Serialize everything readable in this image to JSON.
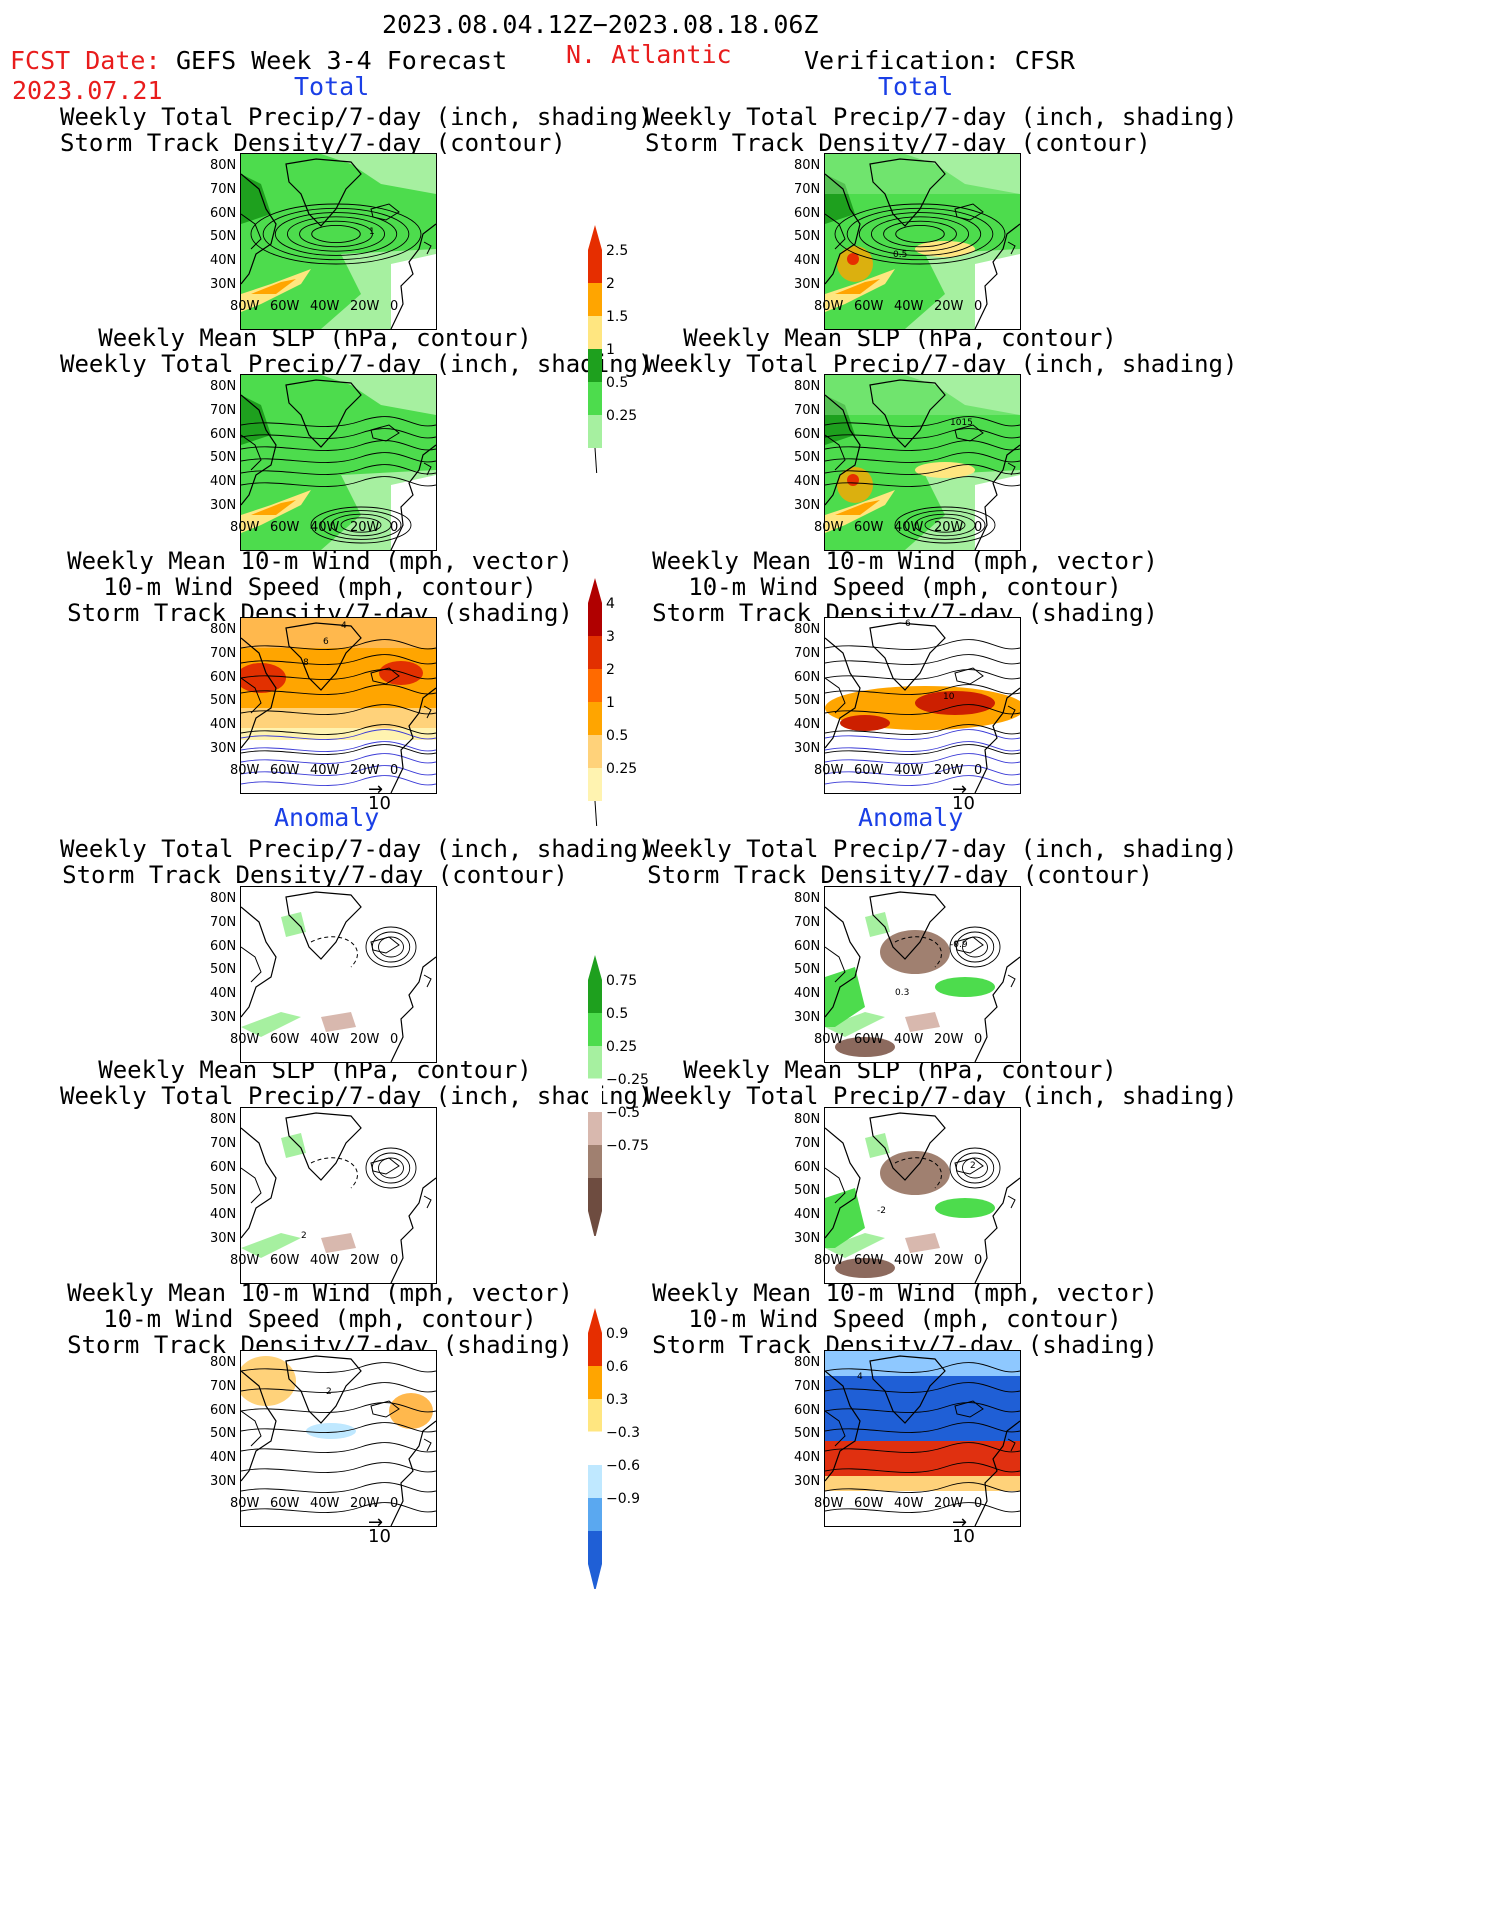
{
  "header": {
    "dates": "2023.08.04.12Z−2023.08.18.06Z",
    "fcst_label": "FCST Date:",
    "fcst_date": "2023.07.21",
    "forecast_title": "GEFS Week 3-4 Forecast",
    "region": "N. Atlantic",
    "verification": "Verification: CFSR"
  },
  "sections": {
    "total": "Total",
    "anomaly": "Anomaly"
  },
  "panel_titles": {
    "precip_storm": "Weekly Total Precip/7-day (inch, shading)\nStorm Track Density/7-day (contour)",
    "slp_precip": "Weekly Mean SLP (hPa, contour)\nWeekly Total Precip/7-day (inch, shading)",
    "wind": "Weekly Mean 10-m Wind (mph, vector)\n10-m Wind Speed (mph, contour)\nStorm Track Density/7-day (shading)"
  },
  "axes": {
    "lat_ticks": [
      "80N",
      "70N",
      "60N",
      "50N",
      "40N",
      "30N"
    ],
    "lon_ticks": [
      "80W",
      "60W",
      "40W",
      "20W",
      "0"
    ]
  },
  "vector_reference": "10",
  "contour_labels": {
    "fcst_total_precip": "1",
    "ver_total_precip": "0.5",
    "ver_total_slp": "1015",
    "fcst_total_wind_a": "4",
    "fcst_total_wind_b": "8",
    "fcst_total_wind_c": "6",
    "ver_total_wind_a": "10",
    "ver_total_wind_b": "6",
    "ver_anom_precip_a": "-0.9",
    "ver_anom_precip_b": "0.3",
    "fcst_anom_slp": "2",
    "ver_anom_slp_a": "-2",
    "ver_anom_slp_b": "2",
    "fcst_anom_wind": "2",
    "ver_anom_wind": "4"
  },
  "colorbars": {
    "precip_total": [
      "2.5",
      "2",
      "1.5",
      "1",
      "0.5",
      "0.25"
    ],
    "storm_total": [
      "4",
      "3",
      "2",
      "1",
      "0.5",
      "0.25"
    ],
    "precip_anom": [
      "0.75",
      "0.5",
      "0.25",
      "−0.25",
      "−0.5",
      "−0.75"
    ],
    "storm_anom": [
      "0.9",
      "0.6",
      "0.3",
      "−0.3",
      "−0.6",
      "−0.9"
    ]
  },
  "colors": {
    "red_text": "#e81c1c",
    "blue_text": "#1a3fe6",
    "precip_light": "#a6f0a0",
    "precip_mid": "#4ddc4d",
    "precip_dark": "#1ea01e",
    "precip_yellow": "#ffe680",
    "precip_orange": "#ffa500",
    "precip_red": "#e62e00",
    "dry_brown": "#d8b8ae"
  }
}
